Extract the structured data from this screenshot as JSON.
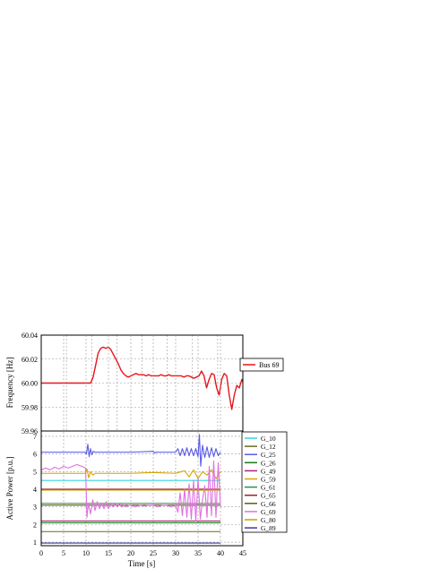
{
  "chart_data": [
    {
      "type": "line",
      "ylabel": "Frequency [Hz]",
      "xlim": [
        0,
        40
      ],
      "ylim": [
        59.96,
        60.04
      ],
      "yticks": [
        "60.04",
        "60.02",
        "60.00",
        "59.98",
        "59.96"
      ],
      "ytick_values": [
        60.04,
        60.02,
        60.0,
        59.98,
        59.96
      ],
      "xticks": [
        0,
        5,
        10,
        15,
        20,
        25,
        30,
        35,
        40
      ],
      "grid": true,
      "legend_position": "right",
      "series": [
        {
          "name": "Bus 69",
          "color": "#e8151b",
          "x": [
            0,
            1,
            2,
            3,
            4,
            5,
            6,
            7,
            8,
            9,
            9.8,
            10.3,
            10.8,
            11.3,
            11.8,
            12.3,
            12.8,
            13.3,
            13.8,
            14.3,
            14.8,
            15.3,
            15.8,
            16.3,
            16.8,
            17.3,
            17.8,
            18.3,
            18.8,
            19.3,
            19.8,
            20.3,
            20.8,
            21.3,
            21.8,
            22.3,
            22.8,
            23.3,
            23.8,
            24.3,
            24.8,
            25.3,
            25.8,
            26.3,
            26.8,
            27.3,
            27.8,
            28.3,
            28.8,
            29.3,
            29.8,
            30.3,
            30.8,
            31.3,
            31.8,
            32.3,
            32.8,
            33.3,
            33.8,
            34.3,
            34.8,
            35.3,
            35.8,
            36.3,
            36.8,
            37.3,
            37.8,
            38.3,
            38.8,
            39.3,
            39.8,
            40
          ],
          "y": [
            60.0,
            60.0,
            60.0,
            60.0,
            60.0,
            60.0,
            60.0,
            60.0,
            60.0,
            60.0,
            60.0,
            60.005,
            60.015,
            60.025,
            60.029,
            60.03,
            60.029,
            60.03,
            60.028,
            60.024,
            60.02,
            60.016,
            60.011,
            60.008,
            60.006,
            60.005,
            60.006,
            60.007,
            60.008,
            60.007,
            60.007,
            60.007,
            60.006,
            60.007,
            60.006,
            60.006,
            60.006,
            60.006,
            60.007,
            60.006,
            60.006,
            60.007,
            60.006,
            60.006,
            60.006,
            60.006,
            60.006,
            60.005,
            60.006,
            60.006,
            60.005,
            60.004,
            60.005,
            60.006,
            60.01,
            60.006,
            59.996,
            60.003,
            60.008,
            60.007,
            59.996,
            59.99,
            60.003,
            60.008,
            60.006,
            59.99,
            59.978,
            59.99,
            59.998,
            59.996,
            60.003,
            60.001
          ]
        }
      ]
    },
    {
      "type": "line",
      "xlabel": "Time [s]",
      "ylabel": "Active Power [p.u.]",
      "xlim": [
        0,
        45
      ],
      "ylim": [
        0.8,
        7.3
      ],
      "yticks": [
        1,
        2,
        3,
        4,
        5,
        6,
        7
      ],
      "xticks": [
        0,
        5,
        10,
        15,
        20,
        25,
        30,
        35,
        40,
        45
      ],
      "grid": true,
      "legend_position": "right",
      "series": [
        {
          "name": "G_10",
          "color": "#33d6e0",
          "x": [
            0,
            10,
            20,
            30,
            40
          ],
          "y": [
            4.5,
            4.5,
            4.5,
            4.5,
            4.5
          ]
        },
        {
          "name": "G_12",
          "color": "#6b6b1e",
          "x": [
            0,
            10,
            20,
            30,
            40
          ],
          "y": [
            1.6,
            1.6,
            1.6,
            1.6,
            1.6
          ]
        },
        {
          "name": "G_25",
          "color": "#5a5ae6",
          "x": [
            0,
            9.8,
            10.1,
            10.4,
            10.7,
            11.0,
            11.3,
            11.6,
            12.0,
            13,
            20,
            25,
            25.3,
            25.6,
            30,
            30.5,
            31,
            31.5,
            32,
            32.5,
            33,
            33.5,
            34,
            34.5,
            35,
            35.3,
            35.6,
            36,
            36.5,
            37,
            37.5,
            38,
            38.5,
            39,
            39.5,
            40
          ],
          "y": [
            6.1,
            6.1,
            6.0,
            6.55,
            5.85,
            6.3,
            5.95,
            6.15,
            6.1,
            6.1,
            6.1,
            6.15,
            6.05,
            6.1,
            6.1,
            6.3,
            5.9,
            6.3,
            5.9,
            6.35,
            5.9,
            6.3,
            5.9,
            6.3,
            5.85,
            7.1,
            5.3,
            6.5,
            5.8,
            6.4,
            5.8,
            6.35,
            5.85,
            6.3,
            5.9,
            6.1
          ]
        },
        {
          "name": "G_26",
          "color": "#1a7a1a",
          "x": [
            0,
            10,
            20,
            30,
            40
          ],
          "y": [
            2.1,
            2.1,
            2.1,
            2.1,
            2.1
          ]
        },
        {
          "name": "G_49",
          "color": "#b0207a",
          "x": [
            0,
            10,
            20,
            30,
            40
          ],
          "y": [
            2.2,
            2.2,
            2.2,
            2.2,
            2.2
          ]
        },
        {
          "name": "G_59",
          "color": "#d9a400",
          "x": [
            0,
            9.9,
            10.2,
            10.6,
            11,
            11.5,
            12,
            13,
            20,
            25,
            30,
            32,
            33,
            34,
            35,
            36,
            37,
            38,
            39,
            40
          ],
          "y": [
            4.9,
            4.9,
            5.15,
            4.65,
            5.0,
            4.8,
            4.9,
            4.9,
            4.9,
            4.95,
            4.9,
            5.05,
            4.7,
            5.1,
            4.6,
            5.0,
            4.8,
            5.1,
            4.6,
            5.0
          ]
        },
        {
          "name": "G_61",
          "color": "#2e8b57",
          "x": [
            0,
            10,
            20,
            30,
            40
          ],
          "y": [
            3.2,
            3.2,
            3.2,
            3.2,
            3.2
          ]
        },
        {
          "name": "G_65",
          "color": "#a0201a",
          "x": [
            0,
            10,
            20,
            30,
            40
          ],
          "y": [
            4.0,
            4.0,
            4.0,
            4.0,
            4.0
          ]
        },
        {
          "name": "G_66",
          "color": "#5c5c10",
          "x": [
            0,
            10,
            20,
            30,
            40
          ],
          "y": [
            3.1,
            3.1,
            3.1,
            3.1,
            3.1
          ]
        },
        {
          "name": "G_69",
          "color": "#e070e0",
          "x": [
            0,
            1,
            2,
            3,
            4,
            5,
            6,
            7,
            8,
            9,
            9.9,
            10.2,
            10.5,
            11,
            11.5,
            12,
            12.5,
            13,
            13.5,
            14,
            14.5,
            15,
            15.5,
            16,
            16.5,
            17,
            17.5,
            18,
            18.5,
            19,
            19.5,
            20,
            21,
            22,
            23,
            24,
            25,
            26,
            27,
            28,
            29,
            30,
            30.5,
            31,
            31.5,
            32,
            32.5,
            33,
            33.5,
            34,
            34.5,
            35,
            35.5,
            36,
            36.5,
            37,
            37.5,
            38,
            38.5,
            39,
            39.5,
            40
          ],
          "y": [
            5.1,
            5.2,
            5.1,
            5.25,
            5.15,
            5.3,
            5.2,
            5.3,
            5.4,
            5.3,
            5.2,
            2.4,
            3.2,
            2.6,
            3.4,
            2.8,
            3.3,
            2.9,
            3.2,
            2.9,
            3.3,
            2.9,
            3.2,
            3.0,
            3.2,
            3.0,
            3.2,
            3.0,
            3.1,
            3.0,
            3.1,
            3.1,
            3.0,
            3.1,
            3.05,
            3.1,
            3.1,
            3.0,
            3.1,
            3.1,
            3.0,
            3.1,
            2.7,
            3.8,
            2.5,
            4.0,
            2.4,
            4.3,
            2.3,
            4.5,
            2.2,
            4.6,
            2.3,
            3.4,
            4.2,
            2.4,
            5.3,
            2.5,
            5.6,
            2.4,
            5.5,
            3.0
          ]
        },
        {
          "name": "G_80",
          "color": "#c8a000",
          "x": [
            0,
            10,
            20,
            30,
            40
          ],
          "y": [
            3.95,
            3.95,
            3.95,
            3.95,
            3.95
          ]
        },
        {
          "name": "G_89",
          "color": "#3a3aa0",
          "x": [
            0,
            10,
            20,
            30,
            40
          ],
          "y": [
            0.95,
            0.95,
            0.95,
            0.95,
            0.95
          ]
        }
      ]
    }
  ]
}
